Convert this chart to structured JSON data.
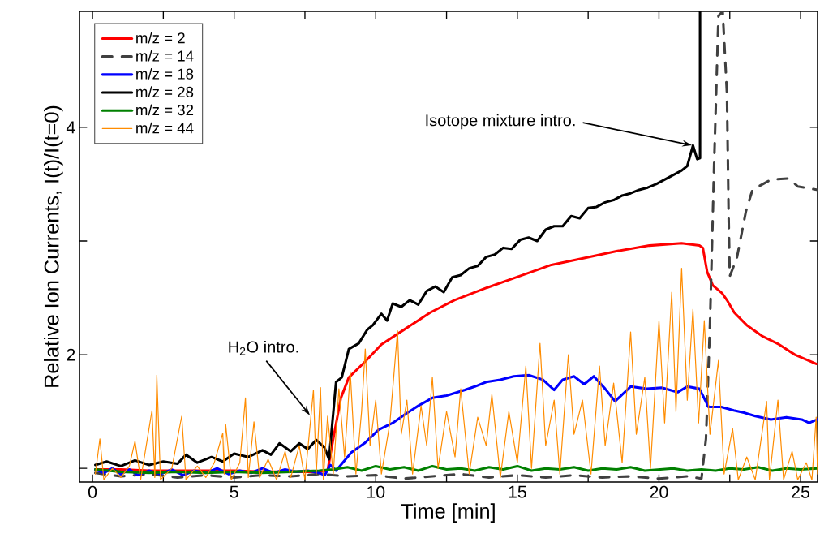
{
  "chart_data": {
    "type": "line",
    "xlabel": "Time [min]",
    "ylabel": "Relative Ion Currents, I(t)/I(t=0)",
    "xlim": [
      -0.46,
      25.6
    ],
    "ylim": [
      0.88,
      5.02
    ],
    "xticks": [
      0,
      {
        "value": 2.5,
        "label": null
      },
      5,
      {
        "value": 7.5,
        "label": null
      },
      10,
      {
        "value": 12.5,
        "label": null
      },
      15,
      {
        "value": 17.5,
        "label": null
      },
      20,
      {
        "value": 22.5,
        "label": null
      },
      25
    ],
    "yticks": [
      {
        "value": 1,
        "label": null
      },
      2,
      {
        "value": 3,
        "label": null
      },
      4
    ],
    "legend": "top left",
    "annotations": [
      {
        "text": "H$_{2}$O intro.",
        "x": 7.7,
        "y": 1.46
      },
      {
        "text": "Isotope mixture intro.",
        "x": 21.2,
        "y": 3.84
      }
    ],
    "series": [
      {
        "name": "m/z = 2",
        "color": "#ff0000",
        "x": [
          0.1,
          1,
          2,
          3,
          4,
          5,
          6,
          7,
          8,
          8.3,
          8.5,
          8.77,
          9.05,
          9.63,
          10.2,
          11.06,
          11.92,
          12.78,
          13.93,
          15.07,
          16.2,
          17.36,
          18.5,
          19.66,
          20.8,
          21.43,
          21.55,
          21.7,
          21.9,
          22.23,
          22.4,
          22.66,
          23.1,
          23.67,
          24.24,
          24.8,
          25.55
        ],
        "values": [
          0.99,
          0.99,
          0.98,
          0.98,
          0.98,
          0.98,
          0.97,
          0.97,
          0.97,
          0.98,
          1.26,
          1.62,
          1.8,
          1.94,
          2.09,
          2.23,
          2.37,
          2.48,
          2.59,
          2.69,
          2.79,
          2.85,
          2.91,
          2.96,
          2.98,
          2.96,
          2.94,
          2.73,
          2.61,
          2.54,
          2.48,
          2.37,
          2.26,
          2.16,
          2.09,
          2.0,
          1.92
        ]
      },
      {
        "name": "m/z = 14",
        "color": "#404040",
        "line_style": "dashed",
        "x": [
          0.1,
          1,
          2,
          3,
          4,
          5,
          6,
          7,
          8,
          9,
          10,
          11,
          12,
          13,
          14,
          15,
          16,
          17,
          18,
          19,
          20,
          21,
          21.5,
          21.66,
          21.8,
          21.95,
          22.1,
          22.25,
          22.4,
          22.46,
          22.5,
          22.75,
          23.07,
          23.3,
          23.95,
          24.6,
          24.9,
          25.6
        ],
        "values": [
          0.96,
          0.93,
          0.95,
          0.92,
          0.94,
          0.92,
          0.94,
          0.93,
          0.95,
          0.93,
          0.94,
          0.91,
          0.93,
          0.95,
          0.92,
          0.94,
          0.92,
          0.94,
          0.92,
          0.93,
          0.91,
          0.93,
          0.91,
          1.26,
          2.26,
          3.7,
          4.98,
          5.02,
          4.3,
          3.21,
          2.69,
          2.85,
          3.26,
          3.45,
          3.54,
          3.55,
          3.48,
          3.45
        ]
      },
      {
        "name": "m/z = 18",
        "color": "#0000ff",
        "x": [
          0.1,
          0.4,
          0.7,
          1.0,
          1.3,
          1.6,
          2.0,
          2.4,
          2.8,
          3.2,
          3.6,
          4.0,
          4.4,
          4.8,
          5.2,
          5.6,
          6.0,
          6.4,
          6.8,
          7.2,
          7.6,
          8.0,
          8.2,
          8.4,
          8.6,
          9.14,
          9.6,
          10.1,
          10.6,
          11.06,
          11.5,
          12.0,
          12.5,
          13.15,
          13.5,
          13.9,
          14.4,
          14.87,
          15.4,
          15.9,
          16.3,
          16.6,
          17.0,
          17.36,
          17.7,
          18.1,
          18.45,
          19.0,
          19.57,
          20.1,
          20.66,
          21.0,
          21.43,
          21.75,
          22.2,
          22.64,
          23.0,
          23.4,
          23.95,
          24.5,
          25.04,
          25.3,
          25.6
        ],
        "values": [
          0.99,
          0.96,
          1.0,
          0.95,
          0.99,
          0.94,
          0.98,
          0.95,
          0.99,
          0.94,
          0.98,
          0.96,
          1.0,
          0.95,
          0.98,
          0.96,
          1.0,
          0.96,
          0.99,
          0.97,
          0.98,
          0.96,
          0.94,
          1.03,
          0.98,
          1.14,
          1.22,
          1.34,
          1.4,
          1.48,
          1.55,
          1.62,
          1.64,
          1.69,
          1.72,
          1.76,
          1.78,
          1.81,
          1.82,
          1.78,
          1.69,
          1.78,
          1.81,
          1.74,
          1.81,
          1.7,
          1.59,
          1.72,
          1.7,
          1.71,
          1.67,
          1.72,
          1.7,
          1.54,
          1.54,
          1.51,
          1.49,
          1.46,
          1.43,
          1.45,
          1.43,
          1.4,
          1.43
        ]
      },
      {
        "name": "m/z = 28",
        "color": "#000000",
        "x": [
          0.1,
          0.5,
          1.0,
          1.5,
          2.0,
          2.5,
          3.0,
          3.3,
          3.7,
          4.2,
          4.6,
          5.0,
          5.5,
          6.0,
          6.3,
          6.6,
          7.0,
          7.3,
          7.6,
          7.9,
          8.2,
          8.35,
          8.6,
          8.8,
          9.05,
          9.4,
          9.7,
          9.9,
          10.2,
          10.4,
          10.6,
          10.9,
          11.2,
          11.5,
          11.8,
          12.1,
          12.4,
          12.7,
          13.0,
          13.3,
          13.6,
          13.9,
          14.2,
          14.5,
          14.8,
          15.1,
          15.4,
          15.7,
          16.0,
          16.3,
          16.6,
          16.9,
          17.2,
          17.5,
          17.8,
          18.1,
          18.4,
          18.7,
          19.0,
          19.3,
          19.6,
          19.9,
          20.2,
          20.5,
          20.8,
          21.0,
          21.2,
          21.35,
          21.45,
          21.45
        ],
        "values": [
          1.03,
          1.06,
          1.02,
          1.07,
          1.03,
          1.06,
          1.04,
          1.12,
          1.05,
          1.1,
          1.06,
          1.13,
          1.1,
          1.16,
          1.12,
          1.22,
          1.15,
          1.22,
          1.17,
          1.25,
          1.18,
          1.08,
          1.76,
          1.8,
          2.05,
          2.1,
          2.22,
          2.26,
          2.36,
          2.3,
          2.45,
          2.42,
          2.48,
          2.44,
          2.56,
          2.6,
          2.55,
          2.68,
          2.7,
          2.76,
          2.78,
          2.86,
          2.88,
          2.94,
          2.93,
          3.01,
          3.03,
          3.0,
          3.1,
          3.13,
          3.13,
          3.22,
          3.2,
          3.29,
          3.3,
          3.34,
          3.36,
          3.4,
          3.42,
          3.45,
          3.47,
          3.5,
          3.54,
          3.58,
          3.62,
          3.66,
          3.84,
          3.72,
          3.73,
          5.02
        ]
      },
      {
        "name": "m/z = 32",
        "color": "#008000",
        "x": [
          0.1,
          1,
          2,
          3,
          4,
          5,
          6,
          7,
          8,
          8.5,
          9,
          9.5,
          10,
          10.5,
          11,
          11.5,
          12,
          12.5,
          13,
          13.5,
          14,
          14.5,
          15,
          15.5,
          16,
          16.5,
          17,
          17.5,
          18,
          18.5,
          19,
          19.5,
          20,
          20.5,
          21,
          21.5,
          22,
          22.5,
          23,
          23.5,
          24,
          24.5,
          25,
          25.6
        ],
        "values": [
          0.99,
          0.97,
          0.96,
          0.97,
          0.96,
          0.97,
          0.96,
          0.97,
          0.98,
          0.99,
          1.01,
          0.98,
          1.02,
          0.99,
          1.01,
          0.98,
          1.02,
          0.99,
          1.0,
          0.98,
          1.01,
          0.99,
          1.02,
          0.98,
          1.0,
          0.99,
          1.01,
          0.98,
          1.0,
          0.99,
          1.01,
          0.98,
          0.99,
          1.0,
          0.98,
          0.99,
          0.98,
          1.0,
          0.99,
          1.01,
          0.98,
          1.0,
          0.99,
          1.0
        ]
      },
      {
        "name": "m/z = 44",
        "color": "#ff8c00",
        "x": [
          0.1,
          0.26,
          0.4,
          0.7,
          1.0,
          1.3,
          1.5,
          1.7,
          2.1,
          2.2,
          2.27,
          2.4,
          2.8,
          3.15,
          3.3,
          3.7,
          4.0,
          4.3,
          4.6,
          4.65,
          4.7,
          4.9,
          5.2,
          5.4,
          5.5,
          5.7,
          5.9,
          6.2,
          6.5,
          6.8,
          7.0,
          7.3,
          7.5,
          7.8,
          7.9,
          8.05,
          8.15,
          8.3,
          8.5,
          8.7,
          8.9,
          9.1,
          9.3,
          9.5,
          9.63,
          9.8,
          10.0,
          10.2,
          10.5,
          10.77,
          10.9,
          11.1,
          11.3,
          11.6,
          11.8,
          12.0,
          12.2,
          12.5,
          12.8,
          13.0,
          13.3,
          13.6,
          13.9,
          14.1,
          14.4,
          14.7,
          15.0,
          15.3,
          15.5,
          15.8,
          16.0,
          16.3,
          16.5,
          16.8,
          17.0,
          17.3,
          17.6,
          17.9,
          18.1,
          18.4,
          18.7,
          19.0,
          19.2,
          19.5,
          19.7,
          20.0,
          20.2,
          20.45,
          20.6,
          20.8,
          21.0,
          21.2,
          21.4,
          21.6,
          21.8,
          22.1,
          22.3,
          22.6,
          22.8,
          23.1,
          23.4,
          23.8,
          23.9,
          24.2,
          24.4,
          24.7,
          24.9,
          25.2,
          25.4,
          25.55,
          25.6
        ],
        "values": [
          0.95,
          1.26,
          0.9,
          1.0,
          0.92,
          1.02,
          1.24,
          0.9,
          1.51,
          0.92,
          1.82,
          0.9,
          1.0,
          1.46,
          0.9,
          1.02,
          0.92,
          1.05,
          1.31,
          0.95,
          1.39,
          0.9,
          1.05,
          1.62,
          0.92,
          1.41,
          0.92,
          1.08,
          0.9,
          1.15,
          0.92,
          1.2,
          0.9,
          1.69,
          0.95,
          1.71,
          0.9,
          1.46,
          0.95,
          1.7,
          1.1,
          1.85,
          0.95,
          1.5,
          2.05,
          1.2,
          1.6,
          0.95,
          1.4,
          2.21,
          1.3,
          1.6,
          0.95,
          1.55,
          1.2,
          1.8,
          1.0,
          1.5,
          1.1,
          1.7,
          0.95,
          1.45,
          1.2,
          1.65,
          0.92,
          1.5,
          1.05,
          1.9,
          1.0,
          2.1,
          1.2,
          1.6,
          0.95,
          2.0,
          1.3,
          1.6,
          0.95,
          1.9,
          1.2,
          1.75,
          1.05,
          2.2,
          1.3,
          1.8,
          1.0,
          2.3,
          1.4,
          2.55,
          1.5,
          2.76,
          1.6,
          2.4,
          1.4,
          2.3,
          1.3,
          1.95,
          0.95,
          1.35,
          0.9,
          1.1,
          0.9,
          1.59,
          0.9,
          1.6,
          0.9,
          1.15,
          0.9,
          1.05,
          0.9,
          1.45,
          0.95
        ]
      }
    ]
  }
}
